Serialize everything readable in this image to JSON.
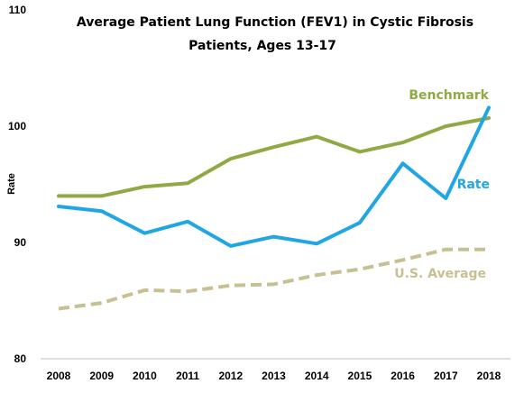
{
  "chart_data": {
    "type": "line",
    "title_lines": [
      "Average Patient Lung Function (FEV1) in Cystic Fibrosis",
      "Patients, Ages 13-17"
    ],
    "ylabel": "Rate",
    "ylim": [
      80,
      110
    ],
    "yticks": [
      "80",
      "90",
      "100",
      "110"
    ],
    "categories": [
      "2008",
      "2009",
      "2010",
      "2011",
      "2012",
      "2013",
      "2014",
      "2015",
      "2016",
      "2017",
      "2018"
    ],
    "grid": false,
    "series": [
      {
        "name": "Benchmark",
        "color": "#8faa45",
        "dashed": false,
        "values": [
          94.0,
          94.0,
          94.8,
          95.1,
          97.2,
          98.2,
          99.1,
          97.8,
          98.6,
          100.0,
          100.7
        ]
      },
      {
        "name": "Rate",
        "color": "#1fa6e3",
        "dashed": false,
        "values": [
          93.1,
          92.7,
          90.8,
          91.8,
          89.7,
          90.5,
          89.9,
          91.7,
          96.8,
          93.8,
          101.6
        ]
      },
      {
        "name": "U.S. Average",
        "color": "#c7c092",
        "dashed": true,
        "values": [
          84.3,
          84.8,
          85.9,
          85.8,
          86.3,
          86.4,
          87.2,
          87.7,
          88.5,
          89.4,
          89.4
        ]
      }
    ]
  }
}
